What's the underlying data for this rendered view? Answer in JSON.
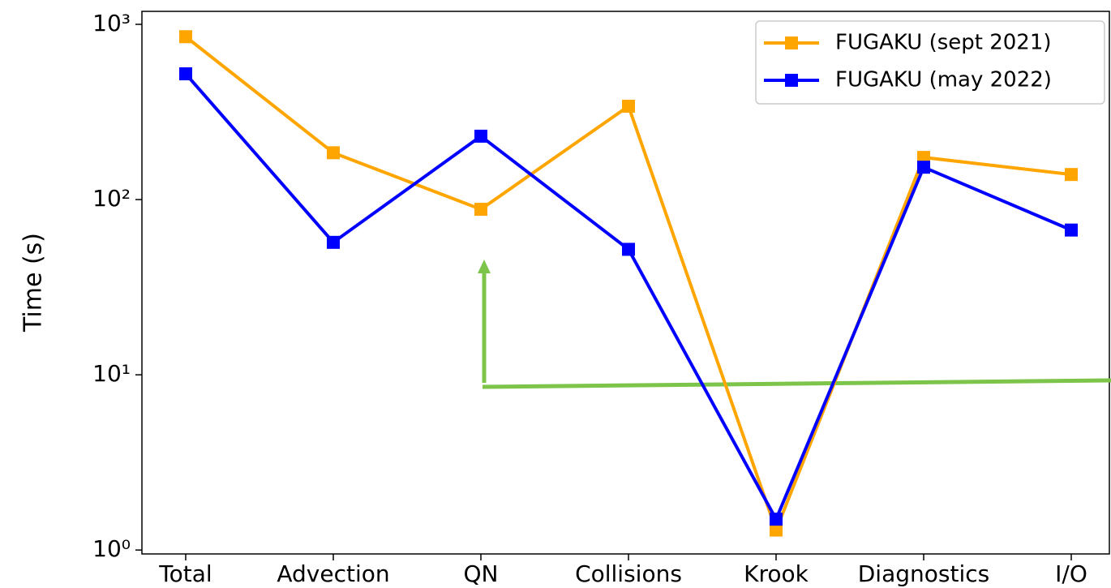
{
  "chart_data": {
    "type": "line",
    "ylabel": "Time (s)",
    "categories": [
      "Total",
      "Advection",
      "QN",
      "Collisions",
      "Krook",
      "Diagnostics",
      "I/O"
    ],
    "series": [
      {
        "name": "FUGAKU (sept 2021)",
        "color": "#ffa500",
        "values": [
          850,
          185,
          88,
          341,
          1.3,
          174,
          139
        ]
      },
      {
        "name": "FUGAKU (may 2022)",
        "color": "#0000ff",
        "values": [
          522,
          57,
          230,
          52,
          1.5,
          153,
          67
        ]
      }
    ],
    "ylim": [
      0.95,
      1186
    ],
    "yticks": [
      {
        "value": 1,
        "label": "10⁰"
      },
      {
        "value": 10,
        "label": "10¹"
      },
      {
        "value": 100,
        "label": "10²"
      },
      {
        "value": 1000,
        "label": "10³"
      }
    ],
    "log_scale_y": true,
    "legend": "upper right"
  }
}
